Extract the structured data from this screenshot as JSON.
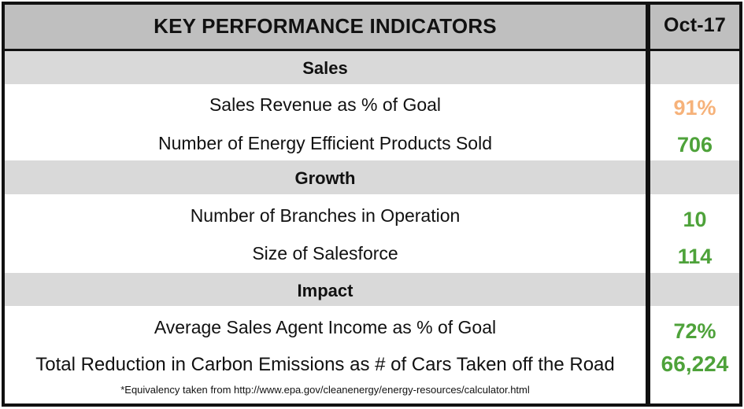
{
  "header": {
    "title": "KEY PERFORMANCE INDICATORS",
    "period": "Oct-17"
  },
  "sections": [
    {
      "name": "Sales",
      "rows": [
        {
          "label": "Sales Revenue as % of Goal",
          "value": "91%"
        },
        {
          "label": "Number of Energy Efficient Products Sold",
          "value": "706"
        }
      ]
    },
    {
      "name": "Growth",
      "rows": [
        {
          "label": "Number of Branches in Operation",
          "value": "10"
        },
        {
          "label": "Size of Salesforce",
          "value": "114"
        }
      ]
    },
    {
      "name": "Impact",
      "rows": [
        {
          "label": "Average Sales Agent Income as % of Goal",
          "value": "72%"
        },
        {
          "label": "Total Reduction in Carbon Emissions  as # of Cars Taken off the Road",
          "value": "66,224"
        }
      ]
    }
  ],
  "footnote": "*Equivalency taken from http://www.epa.gov/cleanenergy/energy-resources/calculator.html",
  "colors": {
    "warning_orange": "#f6b27a",
    "good_green": "#4ea23a",
    "header_gray": "#bfbfbf",
    "section_gray": "#d9d9d9"
  }
}
